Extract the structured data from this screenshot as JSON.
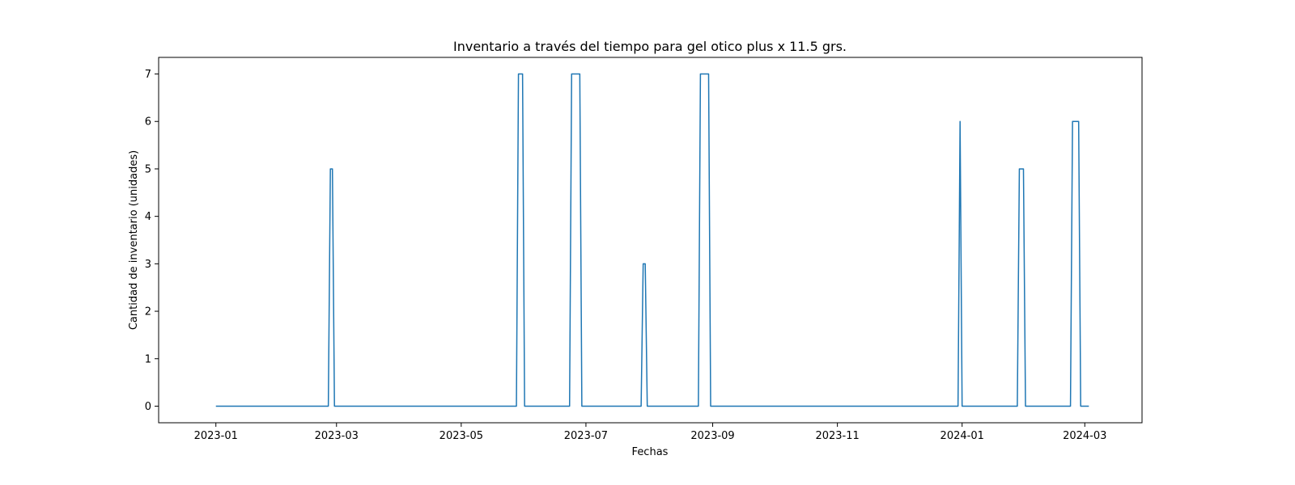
{
  "chart_data": {
    "type": "line",
    "title": "Inventario a través del tiempo para gel otico plus x 11.5 grs.",
    "xlabel": "Fechas",
    "ylabel": "Cantidad de inventario (unidades)",
    "xlim": [
      "2022-12-04",
      "2024-03-29"
    ],
    "ylim": [
      -0.35,
      7.35
    ],
    "grid": false,
    "line_color": "#1f77b4",
    "x_ticks": [
      {
        "date": "2023-01-01",
        "label": "2023-01"
      },
      {
        "date": "2023-03-01",
        "label": "2023-03"
      },
      {
        "date": "2023-05-01",
        "label": "2023-05"
      },
      {
        "date": "2023-07-01",
        "label": "2023-07"
      },
      {
        "date": "2023-09-01",
        "label": "2023-09"
      },
      {
        "date": "2023-11-01",
        "label": "2023-11"
      },
      {
        "date": "2024-01-01",
        "label": "2024-01"
      },
      {
        "date": "2024-03-01",
        "label": "2024-03"
      }
    ],
    "y_ticks": [
      0,
      1,
      2,
      3,
      4,
      5,
      6,
      7
    ],
    "series": [
      {
        "x": [
          "2023-01-01",
          "2023-02-25",
          "2023-02-26",
          "2023-02-27",
          "2023-02-28",
          "2023-05-28",
          "2023-05-29",
          "2023-05-31",
          "2023-06-01",
          "2023-06-23",
          "2023-06-24",
          "2023-06-28",
          "2023-06-29",
          "2023-07-28",
          "2023-07-29",
          "2023-07-30",
          "2023-07-31",
          "2023-08-25",
          "2023-08-26",
          "2023-08-30",
          "2023-08-31",
          "2023-12-30",
          "2023-12-31",
          "2024-01-01",
          "2024-01-28",
          "2024-01-29",
          "2024-01-31",
          "2024-02-01",
          "2024-02-23",
          "2024-02-24",
          "2024-02-27",
          "2024-02-28",
          "2024-03-03"
        ],
        "values": [
          0,
          0,
          5,
          5,
          0,
          0,
          7,
          7,
          0,
          0,
          7,
          7,
          0,
          0,
          3,
          3,
          0,
          0,
          7,
          7,
          0,
          0,
          6,
          0,
          0,
          5,
          5,
          0,
          0,
          6,
          6,
          0,
          0
        ]
      }
    ]
  }
}
